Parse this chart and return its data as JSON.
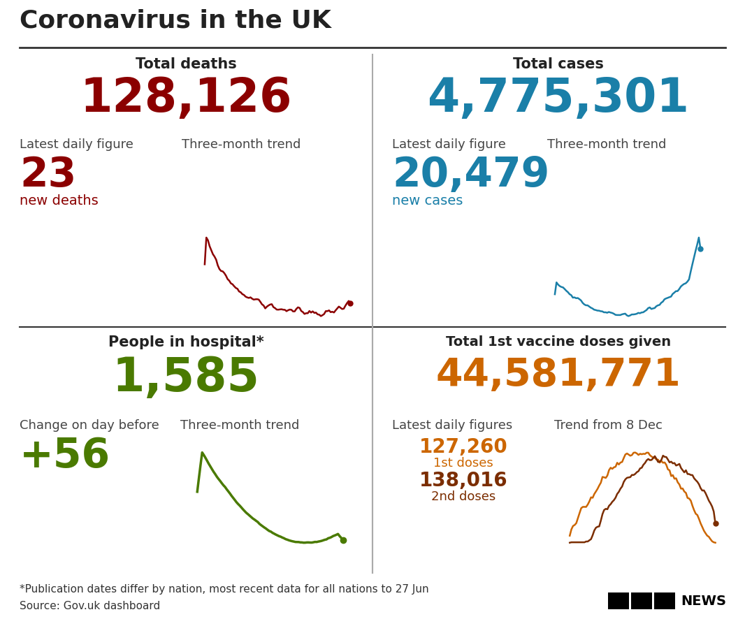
{
  "title": "Coronavirus in the UK",
  "background_color": "#ffffff",
  "title_color": "#222222",
  "deaths_total": "128,126",
  "deaths_total_color": "#8B0000",
  "deaths_section_title": "Total deaths",
  "deaths_daily": "23",
  "deaths_daily_label": "new deaths",
  "deaths_daily_color": "#8B0000",
  "deaths_trend_label": "Three-month trend",
  "deaths_daily_fig_label": "Latest daily figure",
  "cases_total": "4,775,301",
  "cases_total_color": "#1a7fa8",
  "cases_section_title": "Total cases",
  "cases_daily": "20,479",
  "cases_daily_label": "new cases",
  "cases_daily_color": "#1a7fa8",
  "cases_trend_label": "Three-month trend",
  "cases_daily_fig_label": "Latest daily figure",
  "hospital_total": "1,585",
  "hospital_total_color": "#4a7a00",
  "hospital_section_title": "People in hospital*",
  "hospital_change": "+56",
  "hospital_change_color": "#4a7a00",
  "hospital_change_label": "Change on day before",
  "hospital_trend_label": "Three-month trend",
  "vaccine_total": "44,581,771",
  "vaccine_total_color": "#cc6600",
  "vaccine_section_title": "Total 1st vaccine doses given",
  "vaccine_daily_label": "Latest daily figures",
  "vaccine_1st": "127,260",
  "vaccine_1st_label": "1st doses",
  "vaccine_1st_color": "#cc6600",
  "vaccine_2nd": "138,016",
  "vaccine_2nd_label": "2nd doses",
  "vaccine_2nd_color": "#7B2D00",
  "vaccine_trend_label": "Trend from 8 Dec",
  "footnote": "*Publication dates differ by nation, most recent data for all nations to 27 Jun",
  "source": "Source: Gov.uk dashboard",
  "footnote_color": "#333333",
  "label_color": "#444444"
}
